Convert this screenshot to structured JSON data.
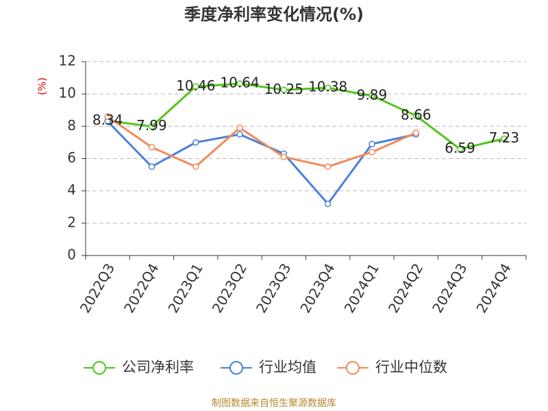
{
  "chart_data": {
    "type": "line",
    "title": "季度净利率变化情况(%)",
    "y_label": "(%)",
    "categories": [
      "2022Q3",
      "2022Q4",
      "2023Q1",
      "2023Q2",
      "2023Q3",
      "2023Q4",
      "2024Q1",
      "2024Q2",
      "2024Q3",
      "2024Q4"
    ],
    "series": [
      {
        "name": "公司净利率",
        "color": "#52c41a",
        "values": [
          8.34,
          7.99,
          10.46,
          10.64,
          10.25,
          10.38,
          9.89,
          8.66,
          6.59,
          7.23
        ],
        "data_labels": true
      },
      {
        "name": "行业均值",
        "color": "#4a7fdc",
        "values": [
          8.3,
          5.5,
          7.0,
          7.5,
          6.3,
          3.2,
          6.9,
          7.5,
          null,
          null
        ]
      },
      {
        "name": "行业中位数",
        "color": "#f28a5a",
        "values": [
          8.6,
          6.7,
          5.5,
          7.9,
          6.1,
          5.5,
          6.4,
          7.6,
          null,
          null
        ]
      }
    ],
    "ylim": [
      0,
      12
    ],
    "yticks": [
      0,
      2,
      4,
      6,
      8,
      10,
      12
    ],
    "grid": true,
    "legend": "bottom",
    "source": "制图数据来自恒生聚源数据库"
  }
}
